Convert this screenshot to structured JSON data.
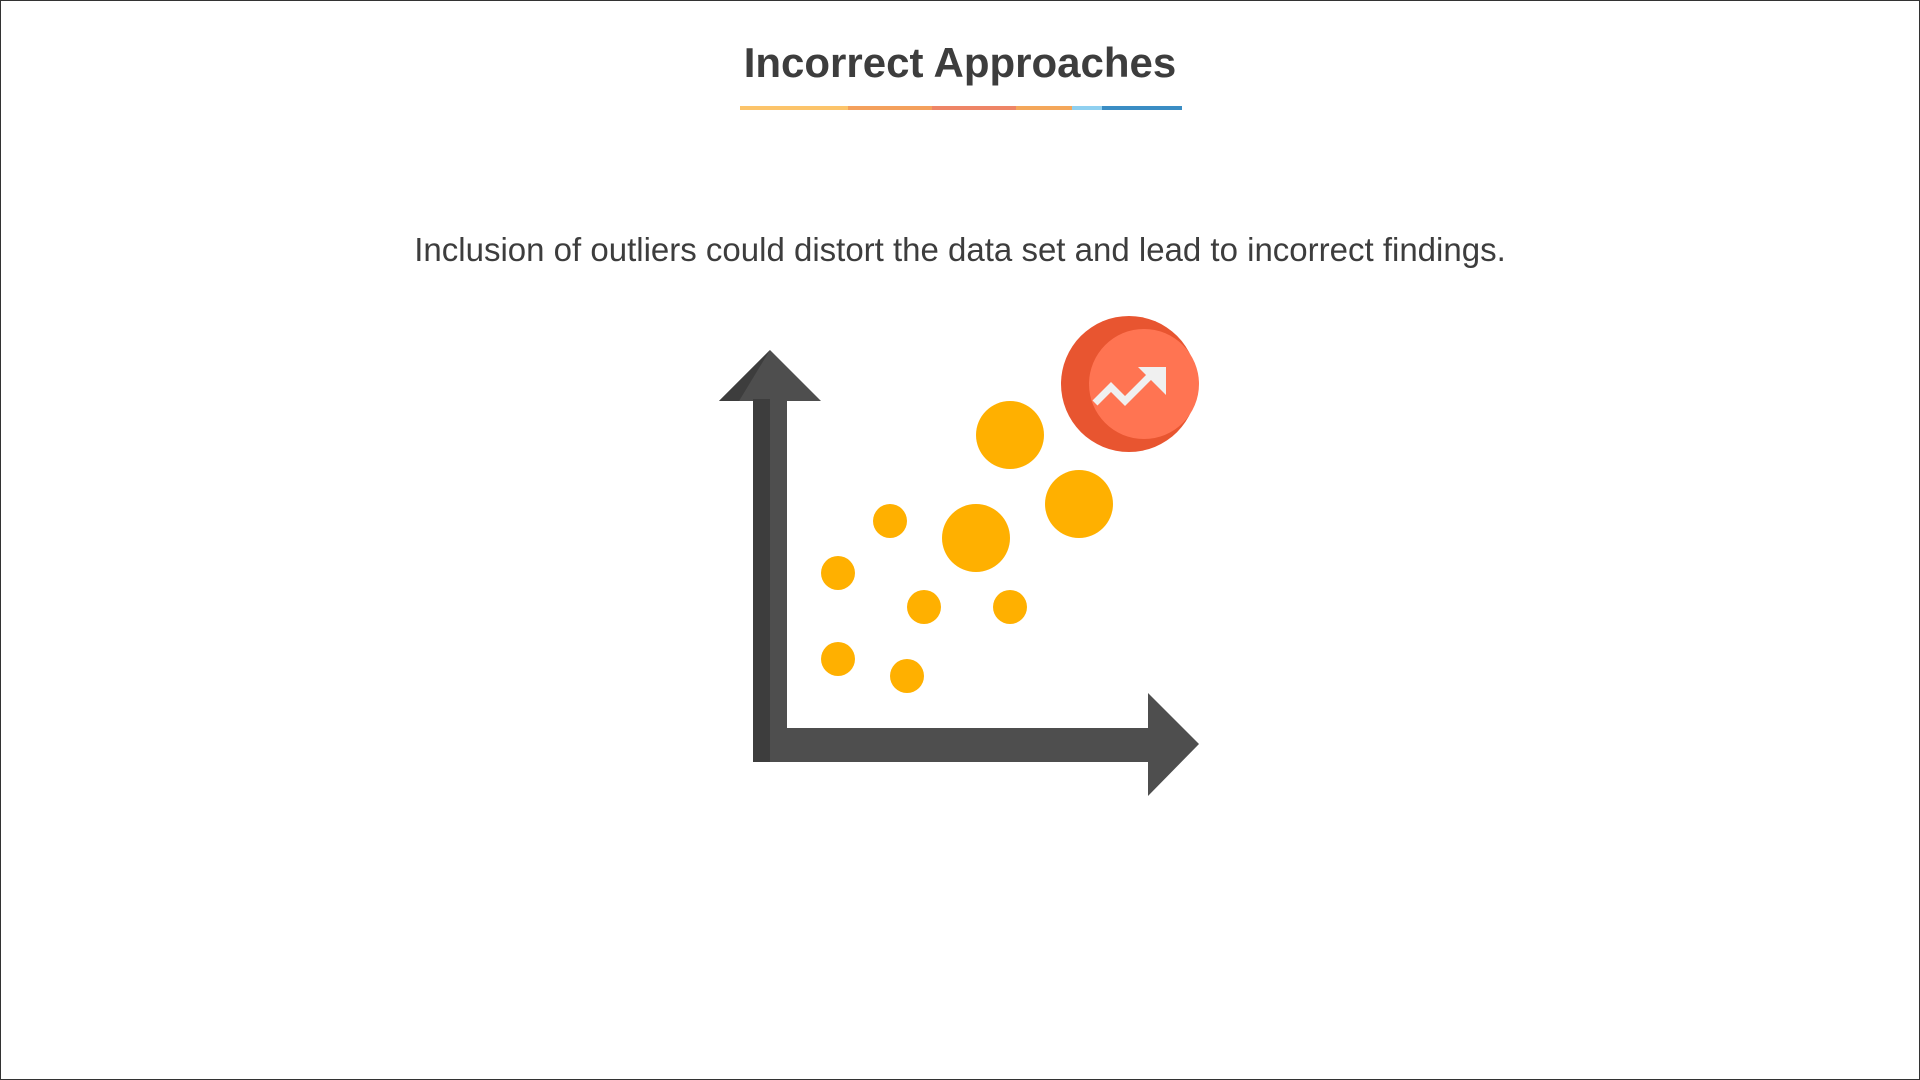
{
  "slide": {
    "title": "Incorrect Approaches",
    "body": "Inclusion of outliers could distort the data set and lead to incorrect findings."
  },
  "colors": {
    "title_text": "#3d3d3d",
    "underline_segments": [
      "#fcc46a",
      "#f4a05c",
      "#ee8566",
      "#f4a75a",
      "#8fd0f0",
      "#3a8dc4"
    ],
    "axis_dark": "#3d3d3d",
    "axis_light": "#4e4e4e",
    "scatter_point": "#ffb000",
    "outlier_badge": "#ff7452",
    "outlier_badge_shadow": "#e85530",
    "outlier_icon": "#f0f0f0"
  },
  "illustration": {
    "icons": [
      "axes-arrows-icon",
      "scatter-points",
      "trend-up-arrow-icon"
    ]
  }
}
